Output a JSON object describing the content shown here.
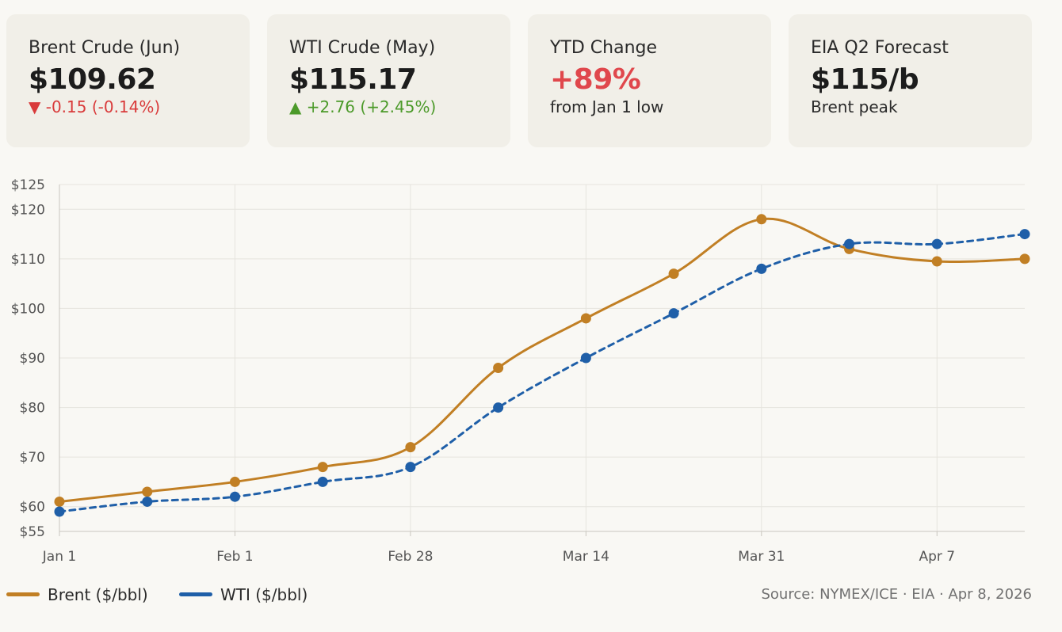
{
  "cards": [
    {
      "label": "Brent Crude (Jun)",
      "value": "$109.62",
      "sub": "▼ -0.15 (-0.14%)",
      "sub_color": "#d93b3b",
      "value_color": "#1c1c1c"
    },
    {
      "label": "WTI Crude (May)",
      "value": "$115.17",
      "sub": "▲ +2.76 (+2.45%)",
      "sub_color": "#4c9a2a",
      "value_color": "#1c1c1c"
    },
    {
      "label": "YTD Change",
      "value": "+89%",
      "sub": "from Jan 1 low",
      "sub_color": "#2a2a2a",
      "value_color": "#e0474c"
    },
    {
      "label": "EIA Q2 Forecast",
      "value": "$115/b",
      "sub": "Brent peak",
      "sub_color": "#2a2a2a",
      "value_color": "#1c1c1c"
    }
  ],
  "legend": {
    "brent": "Brent ($/bbl)",
    "wti": "WTI ($/bbl)"
  },
  "source": "Source: NYMEX/ICE · EIA · Apr 8, 2026",
  "colors": {
    "brent": "#c17f24",
    "wti": "#1f5fa8",
    "grid": "#e6e4de",
    "axis": "#c9c6bf"
  },
  "chart_data": {
    "type": "line",
    "title": "",
    "xlabel": "",
    "ylabel": "",
    "ylim": [
      55,
      125
    ],
    "xlim": [
      0,
      11
    ],
    "yticks": [
      {
        "value": 55,
        "label": "$55"
      },
      {
        "value": 60,
        "label": "$60"
      },
      {
        "value": 70,
        "label": "$70"
      },
      {
        "value": 80,
        "label": "$80"
      },
      {
        "value": 90,
        "label": "$90"
      },
      {
        "value": 100,
        "label": "$100"
      },
      {
        "value": 110,
        "label": "$110"
      },
      {
        "value": 120,
        "label": "$120"
      },
      {
        "value": 125,
        "label": "$125"
      }
    ],
    "xticks": [
      {
        "value": 0,
        "label": "Jan 1"
      },
      {
        "value": 2,
        "label": "Feb 1"
      },
      {
        "value": 4,
        "label": "Feb 28"
      },
      {
        "value": 6,
        "label": "Mar 14"
      },
      {
        "value": 8,
        "label": "Mar 31"
      },
      {
        "value": 10,
        "label": "Apr 7"
      }
    ],
    "x": [
      0,
      1,
      2,
      3,
      4,
      5,
      6,
      7,
      8,
      9,
      10,
      11
    ],
    "series": [
      {
        "name": "Brent ($/bbl)",
        "key": "brent",
        "dashed": false,
        "values": [
          61,
          63,
          65,
          68,
          72,
          88,
          98,
          107,
          118,
          112,
          109.5,
          110
        ]
      },
      {
        "name": "WTI ($/bbl)",
        "key": "wti",
        "dashed": true,
        "values": [
          59,
          61,
          62,
          65,
          68,
          80,
          90,
          99,
          108,
          113,
          113,
          115
        ]
      }
    ]
  }
}
